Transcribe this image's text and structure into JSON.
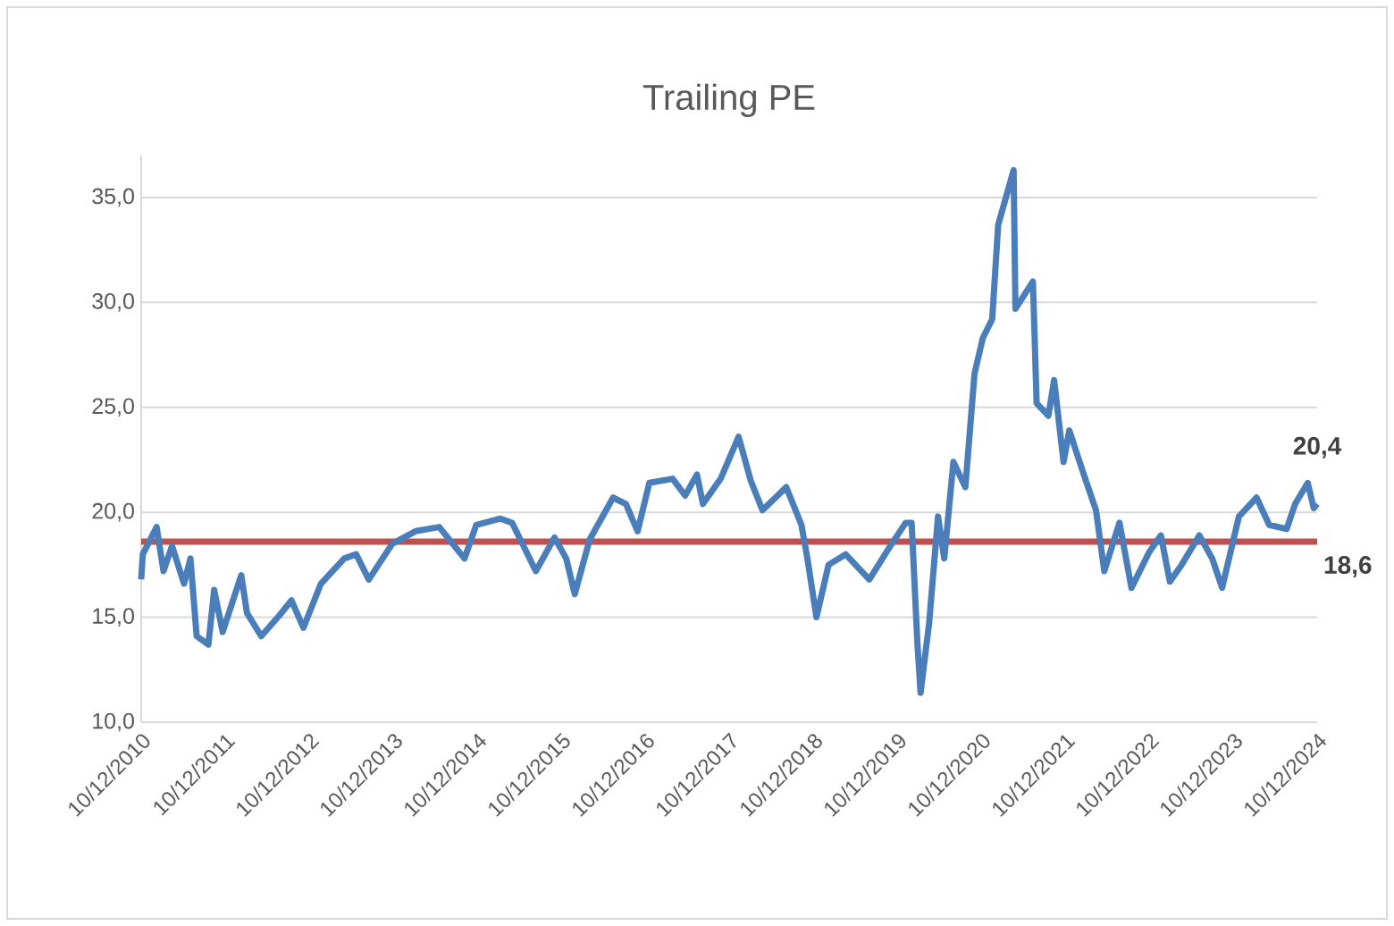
{
  "chart_data": {
    "type": "line",
    "title": "Trailing PE",
    "x": [
      "2010-12-10",
      "2010-12-17",
      "2011-02-15",
      "2011-03-17",
      "2011-04-23",
      "2011-06-14",
      "2011-07-12",
      "2011-08-08",
      "2011-09-28",
      "2011-10-23",
      "2011-11-29",
      "2012-02-18",
      "2012-03-14",
      "2012-05-15",
      "2012-08-03",
      "2012-09-24",
      "2012-11-15",
      "2013-01-30",
      "2013-05-11",
      "2013-07-02",
      "2013-08-26",
      "2013-12-06",
      "2014-03-17",
      "2014-06-28",
      "2014-10-16",
      "2014-12-06",
      "2015-03-21",
      "2015-05-11",
      "2015-08-22",
      "2015-11-11",
      "2016-01-01",
      "2016-02-07",
      "2016-04-12",
      "2016-07-23",
      "2016-09-17",
      "2016-11-07",
      "2016-12-28",
      "2017-04-08",
      "2017-06-02",
      "2017-07-23",
      "2017-08-18",
      "2017-11-03",
      "2018-01-20",
      "2018-03-14",
      "2018-05-04",
      "2018-08-15",
      "2018-10-20",
      "2018-11-15",
      "2018-12-24",
      "2019-02-15",
      "2019-04-30",
      "2019-08-11",
      "2019-10-30",
      "2020-01-16",
      "2020-02-11",
      "2020-03-07",
      "2020-03-21",
      "2020-04-27",
      "2020-06-05",
      "2020-07-02",
      "2020-08-11",
      "2020-10-02",
      "2020-11-11",
      "2020-12-17",
      "2021-01-27",
      "2021-02-22",
      "2021-04-30",
      "2021-05-08",
      "2021-07-23",
      "2021-08-08",
      "2021-09-28",
      "2021-10-23",
      "2021-12-03",
      "2021-12-28",
      "2022-03-01",
      "2022-04-23",
      "2022-05-29",
      "2022-08-03",
      "2022-09-24",
      "2022-12-10",
      "2023-01-30",
      "2023-03-10",
      "2023-04-30",
      "2023-07-16",
      "2023-09-10",
      "2023-10-23",
      "2024-01-04",
      "2024-03-21",
      "2024-05-15",
      "2024-07-30",
      "2024-09-05",
      "2024-10-30",
      "2024-11-25",
      "2024-12-10"
    ],
    "series": [
      {
        "color": "#4a7ebb",
        "values": [
          16.8,
          18.0,
          19.3,
          17.2,
          18.4,
          16.6,
          17.8,
          14.1,
          13.7,
          16.3,
          14.3,
          17.0,
          15.2,
          14.1,
          15.1,
          15.8,
          14.5,
          16.6,
          17.8,
          18.0,
          16.8,
          18.5,
          19.1,
          19.3,
          17.8,
          19.4,
          19.7,
          19.5,
          17.2,
          18.8,
          17.8,
          16.1,
          18.7,
          20.7,
          20.4,
          19.1,
          21.4,
          21.6,
          20.8,
          21.8,
          20.4,
          21.6,
          23.6,
          21.5,
          20.1,
          21.2,
          19.4,
          17.8,
          15.0,
          17.5,
          18.0,
          16.8,
          18.2,
          19.5,
          19.5,
          13.8,
          11.4,
          14.7,
          19.8,
          17.8,
          22.4,
          21.2,
          26.6,
          28.3,
          29.2,
          33.7,
          36.3,
          29.7,
          31.0,
          25.2,
          24.6,
          26.3,
          22.4,
          23.9,
          21.8,
          20.1,
          17.2,
          19.5,
          16.4,
          18.1,
          18.9,
          16.7,
          17.5,
          18.9,
          17.8,
          16.4,
          19.8,
          20.7,
          19.4,
          19.2,
          20.4,
          21.4,
          20.2,
          20.4
        ]
      }
    ],
    "xlim": [
      "2010-12-10",
      "2024-12-10"
    ],
    "xticks": [
      {
        "value": "2010-12-10",
        "label": "10/12/2010"
      },
      {
        "value": "2011-12-10",
        "label": "10/12/2011"
      },
      {
        "value": "2012-12-10",
        "label": "10/12/2012"
      },
      {
        "value": "2013-12-10",
        "label": "10/12/2013"
      },
      {
        "value": "2014-12-10",
        "label": "10/12/2014"
      },
      {
        "value": "2015-12-10",
        "label": "10/12/2015"
      },
      {
        "value": "2016-12-10",
        "label": "10/12/2016"
      },
      {
        "value": "2017-12-10",
        "label": "10/12/2017"
      },
      {
        "value": "2018-12-10",
        "label": "10/12/2018"
      },
      {
        "value": "2019-12-10",
        "label": "10/12/2019"
      },
      {
        "value": "2020-12-10",
        "label": "10/12/2020"
      },
      {
        "value": "2021-12-10",
        "label": "10/12/2021"
      },
      {
        "value": "2022-12-10",
        "label": "10/12/2022"
      },
      {
        "value": "2023-12-10",
        "label": "10/12/2023"
      },
      {
        "value": "2024-12-10",
        "label": "10/12/2024"
      }
    ],
    "ylim": [
      10,
      37
    ],
    "yticks": [
      {
        "value": 10,
        "label": "10,0"
      },
      {
        "value": 15,
        "label": "15,0"
      },
      {
        "value": 20,
        "label": "20,0"
      },
      {
        "value": 25,
        "label": "25,0"
      },
      {
        "value": 30,
        "label": "30,0"
      },
      {
        "value": 35,
        "label": "35,0"
      }
    ],
    "grid": "y",
    "marker": "none",
    "line_style": "solid",
    "ref_lines": [
      {
        "axis": "y",
        "value": 18.6,
        "label": "18,6",
        "color": "#c0504d"
      }
    ],
    "annotations": [
      {
        "text": "20,4",
        "x": "2024-12-10",
        "y": 20.4
      }
    ]
  }
}
